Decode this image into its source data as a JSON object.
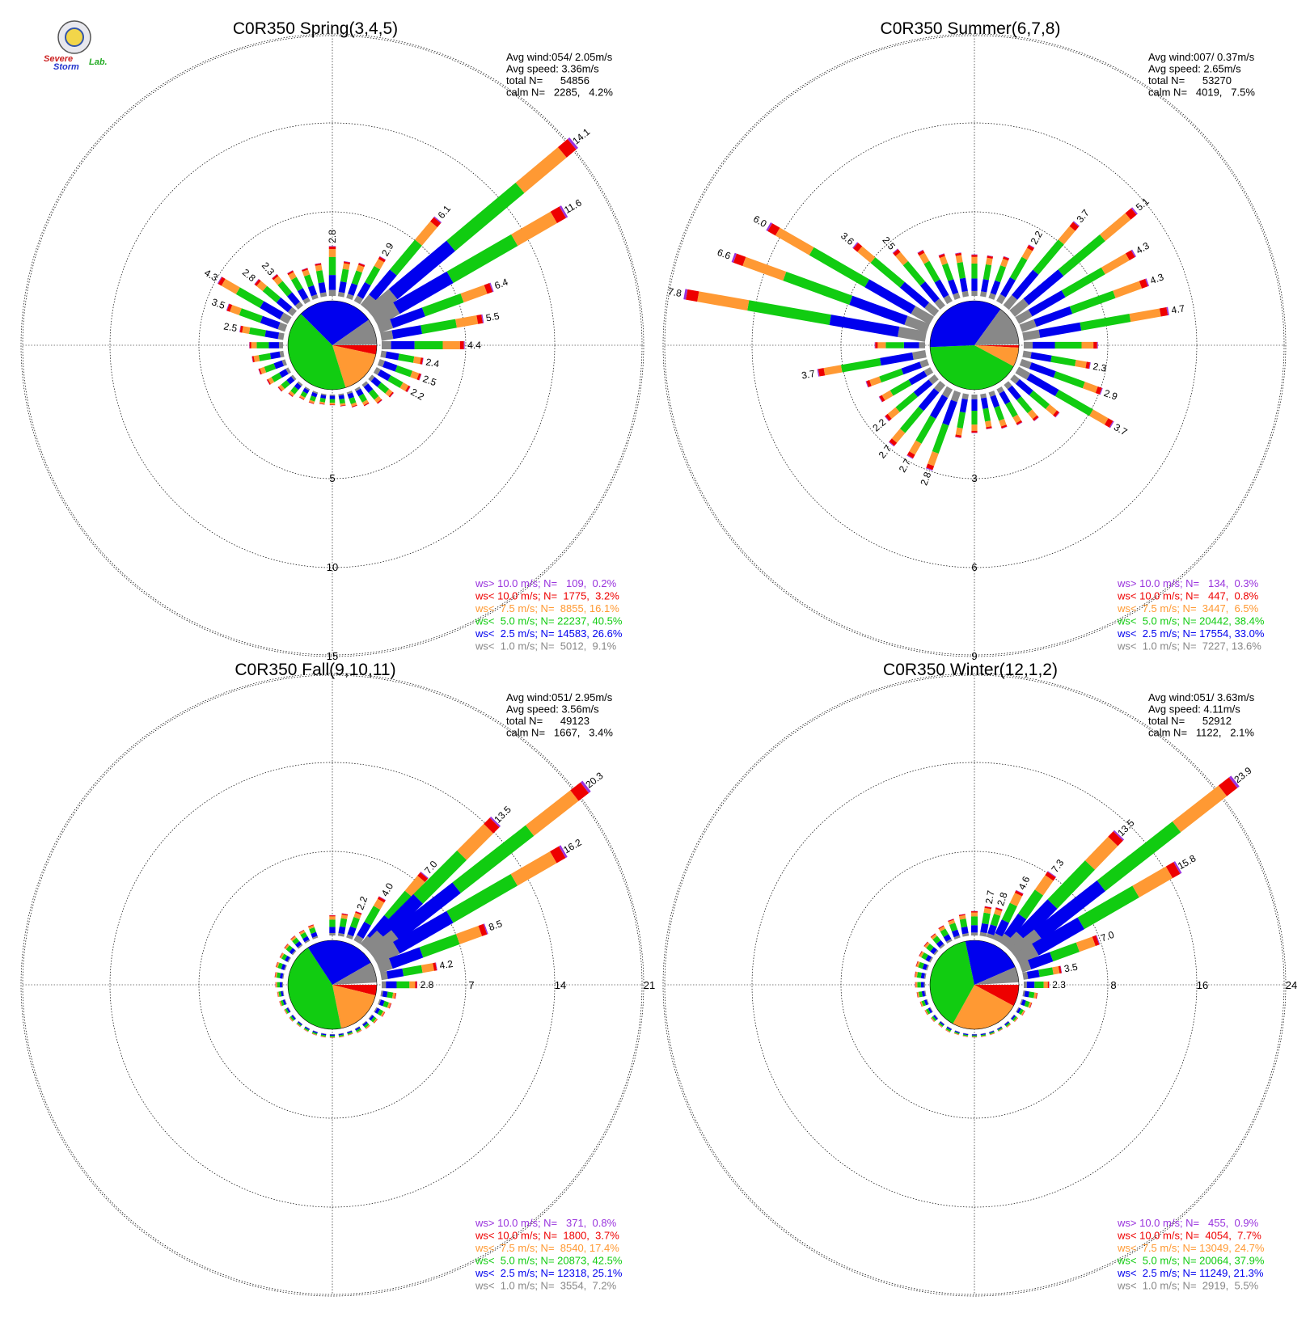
{
  "logo": {
    "line1": "Severe",
    "line2": "Storm",
    "line3": "Lab."
  },
  "colors": {
    "gt10": "#9933dd",
    "lt10": "#ee0000",
    "lt7_5": "#ff9933",
    "lt5": "#11cc11",
    "lt2_5": "#0000ee",
    "lt1": "#888888"
  },
  "chart_data": [
    {
      "type": "rose",
      "title": "C0R350 Spring(3,4,5)",
      "info": [
        "Avg wind:054/ 2.05m/s",
        "Avg speed: 3.36m/s",
        "total N=      54856",
        "calm N=   2285,   4.2%"
      ],
      "rings": [
        "5",
        "10",
        "15"
      ],
      "legend": [
        {
          "text": "ws> 10.0 m/s; N=   109,  0.2%",
          "key": "gt10"
        },
        {
          "text": "ws< 10.0 m/s; N=  1775,  3.2%",
          "key": "lt10"
        },
        {
          "text": "ws<  7.5 m/s; N=  8855, 16.1%",
          "key": "lt7_5"
        },
        {
          "text": "ws<  5.0 m/s; N= 22237, 40.5%",
          "key": "lt5"
        },
        {
          "text": "ws<  2.5 m/s; N= 14583, 26.6%",
          "key": "lt2_5"
        },
        {
          "text": "ws<  1.0 m/s; N=  5012,  9.1%",
          "key": "lt1"
        }
      ],
      "pie": [
        9.1,
        26.6,
        40.5,
        16.1,
        3.2,
        0.2
      ],
      "bars": [
        {
          "dir": 0,
          "total": 2.8,
          "label": "2.8"
        },
        {
          "dir": 10,
          "total": 2.0
        },
        {
          "dir": 20,
          "total": 2.1
        },
        {
          "dir": 30,
          "total": 2.9,
          "label": "2.9"
        },
        {
          "dir": 40,
          "total": 6.1,
          "label": "6.1"
        },
        {
          "dir": 50,
          "total": 14.1,
          "label": "14.1"
        },
        {
          "dir": 60,
          "total": 11.6,
          "label": "11.6"
        },
        {
          "dir": 70,
          "total": 6.4,
          "label": "6.4"
        },
        {
          "dir": 80,
          "total": 5.5,
          "label": "5.5"
        },
        {
          "dir": 90,
          "total": 4.4,
          "label": "4.4"
        },
        {
          "dir": 100,
          "total": 2.4,
          "label": "2.4"
        },
        {
          "dir": 110,
          "total": 2.5,
          "label": "2.5"
        },
        {
          "dir": 120,
          "total": 2.2,
          "label": "2.2"
        },
        {
          "dir": 130,
          "total": 1.6
        },
        {
          "dir": 140,
          "total": 1.4
        },
        {
          "dir": 150,
          "total": 1.1
        },
        {
          "dir": 160,
          "total": 0.9
        },
        {
          "dir": 170,
          "total": 0.7
        },
        {
          "dir": 180,
          "total": 0.6
        },
        {
          "dir": 190,
          "total": 0.6
        },
        {
          "dir": 200,
          "total": 0.7
        },
        {
          "dir": 210,
          "total": 0.7
        },
        {
          "dir": 220,
          "total": 0.9
        },
        {
          "dir": 230,
          "total": 1.1
        },
        {
          "dir": 240,
          "total": 1.4
        },
        {
          "dir": 250,
          "total": 1.6
        },
        {
          "dir": 260,
          "total": 1.8
        },
        {
          "dir": 270,
          "total": 1.9
        },
        {
          "dir": 280,
          "total": 2.5,
          "label": "2.5"
        },
        {
          "dir": 290,
          "total": 3.5,
          "label": "3.5"
        },
        {
          "dir": 300,
          "total": 4.3,
          "label": "4.3"
        },
        {
          "dir": 310,
          "total": 2.8,
          "label": "2.8"
        },
        {
          "dir": 320,
          "total": 2.3,
          "label": "2.3"
        },
        {
          "dir": 330,
          "total": 2.0
        },
        {
          "dir": 340,
          "total": 1.8
        },
        {
          "dir": 350,
          "total": 1.9
        }
      ]
    },
    {
      "type": "rose",
      "title": "C0R350 Summer(6,7,8)",
      "info": [
        "Avg wind:007/ 0.37m/s",
        "Avg speed: 2.65m/s",
        "total N=      53270",
        "calm N=   4019,   7.5%"
      ],
      "rings": [
        "3",
        "6",
        "9"
      ],
      "legend": [
        {
          "text": "ws> 10.0 m/s; N=   134,  0.3%",
          "key": "gt10"
        },
        {
          "text": "ws< 10.0 m/s; N=   447,  0.8%",
          "key": "lt10"
        },
        {
          "text": "ws<  7.5 m/s; N=  3447,  6.5%",
          "key": "lt7_5"
        },
        {
          "text": "ws<  5.0 m/s; N= 20442, 38.4%",
          "key": "lt5"
        },
        {
          "text": "ws<  2.5 m/s; N= 17554, 33.0%",
          "key": "lt2_5"
        },
        {
          "text": "ws<  1.0 m/s; N=  7227, 13.6%",
          "key": "lt1"
        }
      ],
      "pie": [
        13.6,
        33.0,
        38.4,
        6.5,
        0.8,
        0.3
      ],
      "bars": [
        {
          "dir": 0,
          "total": 1.4
        },
        {
          "dir": 10,
          "total": 1.4
        },
        {
          "dir": 20,
          "total": 1.5
        },
        {
          "dir": 30,
          "total": 2.2,
          "label": "2.2"
        },
        {
          "dir": 40,
          "total": 3.7,
          "label": "3.7"
        },
        {
          "dir": 50,
          "total": 5.1,
          "label": "5.1"
        },
        {
          "dir": 60,
          "total": 4.3,
          "label": "4.3"
        },
        {
          "dir": 70,
          "total": 4.3,
          "label": "4.3"
        },
        {
          "dir": 80,
          "total": 4.7,
          "label": "4.7"
        },
        {
          "dir": 90,
          "total": 2.5
        },
        {
          "dir": 100,
          "total": 2.3,
          "label": "2.3"
        },
        {
          "dir": 110,
          "total": 2.9,
          "label": "2.9"
        },
        {
          "dir": 120,
          "total": 3.7,
          "label": "3.7"
        },
        {
          "dir": 130,
          "total": 2.0
        },
        {
          "dir": 140,
          "total": 1.6
        },
        {
          "dir": 150,
          "total": 1.4
        },
        {
          "dir": 160,
          "total": 1.3
        },
        {
          "dir": 170,
          "total": 1.2
        },
        {
          "dir": 180,
          "total": 1.3
        },
        {
          "dir": 190,
          "total": 1.5
        },
        {
          "dir": 200,
          "total": 2.8,
          "label": "2.8"
        },
        {
          "dir": 210,
          "total": 2.7,
          "label": "2.7"
        },
        {
          "dir": 220,
          "total": 2.7,
          "label": "2.7"
        },
        {
          "dir": 230,
          "total": 2.2,
          "label": "2.2"
        },
        {
          "dir": 240,
          "total": 2.0
        },
        {
          "dir": 250,
          "total": 2.2
        },
        {
          "dir": 260,
          "total": 3.7,
          "label": "3.7"
        },
        {
          "dir": 270,
          "total": 1.7
        },
        {
          "dir": 280,
          "total": 7.8,
          "label": "7.8"
        },
        {
          "dir": 290,
          "total": 6.6,
          "label": "6.6"
        },
        {
          "dir": 300,
          "total": 6.0,
          "label": "6.0"
        },
        {
          "dir": 310,
          "total": 3.6,
          "label": "3.6"
        },
        {
          "dir": 320,
          "total": 2.5,
          "label": "2.5"
        },
        {
          "dir": 330,
          "total": 2.0
        },
        {
          "dir": 340,
          "total": 1.6
        },
        {
          "dir": 350,
          "total": 1.5
        }
      ]
    },
    {
      "type": "rose",
      "title": "C0R350 Fall(9,10,11)",
      "info": [
        "Avg wind:051/ 2.95m/s",
        "Avg speed: 3.56m/s",
        "total N=      49123",
        "calm N=   1667,   3.4%"
      ],
      "rings": [
        "7",
        "14",
        "21"
      ],
      "legend": [
        {
          "text": "ws> 10.0 m/s; N=   371,  0.8%",
          "key": "gt10"
        },
        {
          "text": "ws< 10.0 m/s; N=  1800,  3.7%",
          "key": "lt10"
        },
        {
          "text": "ws<  7.5 m/s; N=  8540, 17.4%",
          "key": "lt7_5"
        },
        {
          "text": "ws<  5.0 m/s; N= 20873, 42.5%",
          "key": "lt5"
        },
        {
          "text": "ws<  2.5 m/s; N= 12318, 25.1%",
          "key": "lt2_5"
        },
        {
          "text": "ws<  1.0 m/s; N=  3554,  7.2%",
          "key": "lt1"
        }
      ],
      "pie": [
        7.2,
        25.1,
        42.5,
        17.4,
        3.7,
        0.8
      ],
      "bars": [
        {
          "dir": 0,
          "total": 1.6
        },
        {
          "dir": 10,
          "total": 1.8
        },
        {
          "dir": 20,
          "total": 2.2,
          "label": "2.2"
        },
        {
          "dir": 30,
          "total": 4.0,
          "label": "4.0"
        },
        {
          "dir": 40,
          "total": 7.0,
          "label": "7.0"
        },
        {
          "dir": 45,
          "total": 13.5,
          "label": "13.5"
        },
        {
          "dir": 52,
          "total": 20.3,
          "label": "20.3"
        },
        {
          "dir": 60,
          "total": 16.2,
          "label": "16.2"
        },
        {
          "dir": 70,
          "total": 8.5,
          "label": "8.5"
        },
        {
          "dir": 80,
          "total": 4.2,
          "label": "4.2"
        },
        {
          "dir": 90,
          "total": 2.8,
          "label": "2.8"
        },
        {
          "dir": 100,
          "total": 1.2
        },
        {
          "dir": 110,
          "total": 1.0
        },
        {
          "dir": 120,
          "total": 0.8
        },
        {
          "dir": 130,
          "total": 0.6
        },
        {
          "dir": 140,
          "total": 0.5
        },
        {
          "dir": 150,
          "total": 0.4
        },
        {
          "dir": 160,
          "total": 0.3
        },
        {
          "dir": 170,
          "total": 0.3
        },
        {
          "dir": 180,
          "total": 0.3
        },
        {
          "dir": 190,
          "total": 0.3
        },
        {
          "dir": 200,
          "total": 0.3
        },
        {
          "dir": 210,
          "total": 0.3
        },
        {
          "dir": 220,
          "total": 0.3
        },
        {
          "dir": 230,
          "total": 0.4
        },
        {
          "dir": 240,
          "total": 0.4
        },
        {
          "dir": 250,
          "total": 0.5
        },
        {
          "dir": 260,
          "total": 0.5
        },
        {
          "dir": 270,
          "total": 0.6
        },
        {
          "dir": 280,
          "total": 0.7
        },
        {
          "dir": 290,
          "total": 0.8
        },
        {
          "dir": 300,
          "total": 0.8
        },
        {
          "dir": 310,
          "total": 0.9
        },
        {
          "dir": 320,
          "total": 1.0
        },
        {
          "dir": 330,
          "total": 1.0
        },
        {
          "dir": 340,
          "total": 1.1
        }
      ]
    },
    {
      "type": "rose",
      "title": "C0R350 Winter(12,1,2)",
      "info": [
        "Avg wind:051/ 3.63m/s",
        "Avg speed: 4.11m/s",
        "total N=      52912",
        "calm N=   1122,   2.1%"
      ],
      "rings": [
        "8",
        "16",
        "24"
      ],
      "legend": [
        {
          "text": "ws> 10.0 m/s; N=   455,  0.9%",
          "key": "gt10"
        },
        {
          "text": "ws< 10.0 m/s; N=  4054,  7.7%",
          "key": "lt10"
        },
        {
          "text": "ws<  7.5 m/s; N= 13049, 24.7%",
          "key": "lt7_5"
        },
        {
          "text": "ws<  5.0 m/s; N= 20064, 37.9%",
          "key": "lt5"
        },
        {
          "text": "ws<  2.5 m/s; N= 11249, 21.3%",
          "key": "lt2_5"
        },
        {
          "text": "ws<  1.0 m/s; N=  2919,  5.5%",
          "key": "lt1"
        }
      ],
      "pie": [
        5.5,
        21.3,
        37.9,
        24.7,
        7.7,
        0.9
      ],
      "bars": [
        {
          "dir": 0,
          "total": 2.2
        },
        {
          "dir": 10,
          "total": 2.7,
          "label": "2.7"
        },
        {
          "dir": 18,
          "total": 2.8,
          "label": "2.8"
        },
        {
          "dir": 26,
          "total": 4.6,
          "label": "4.6"
        },
        {
          "dir": 35,
          "total": 7.3,
          "label": "7.3"
        },
        {
          "dir": 44,
          "total": 13.5,
          "label": "13.5"
        },
        {
          "dir": 52,
          "total": 23.9,
          "label": "23.9"
        },
        {
          "dir": 60,
          "total": 15.8,
          "label": "15.8"
        },
        {
          "dir": 70,
          "total": 7.0,
          "label": "7.0"
        },
        {
          "dir": 80,
          "total": 3.5,
          "label": "3.5"
        },
        {
          "dir": 90,
          "total": 2.3,
          "label": "2.3"
        },
        {
          "dir": 100,
          "total": 1.3
        },
        {
          "dir": 110,
          "total": 1.0
        },
        {
          "dir": 120,
          "total": 0.7
        },
        {
          "dir": 130,
          "total": 0.5
        },
        {
          "dir": 140,
          "total": 0.4
        },
        {
          "dir": 150,
          "total": 0.3
        },
        {
          "dir": 160,
          "total": 0.3
        },
        {
          "dir": 170,
          "total": 0.3
        },
        {
          "dir": 180,
          "total": 0.3
        },
        {
          "dir": 190,
          "total": 0.3
        },
        {
          "dir": 200,
          "total": 0.3
        },
        {
          "dir": 210,
          "total": 0.4
        },
        {
          "dir": 220,
          "total": 0.4
        },
        {
          "dir": 230,
          "total": 0.5
        },
        {
          "dir": 240,
          "total": 0.6
        },
        {
          "dir": 250,
          "total": 0.7
        },
        {
          "dir": 260,
          "total": 0.8
        },
        {
          "dir": 270,
          "total": 0.9
        },
        {
          "dir": 280,
          "total": 1.0
        },
        {
          "dir": 290,
          "total": 1.1
        },
        {
          "dir": 300,
          "total": 1.2
        },
        {
          "dir": 310,
          "total": 1.3
        },
        {
          "dir": 320,
          "total": 1.4
        },
        {
          "dir": 330,
          "total": 1.6
        },
        {
          "dir": 340,
          "total": 1.8
        },
        {
          "dir": 350,
          "total": 2.0
        }
      ]
    }
  ]
}
